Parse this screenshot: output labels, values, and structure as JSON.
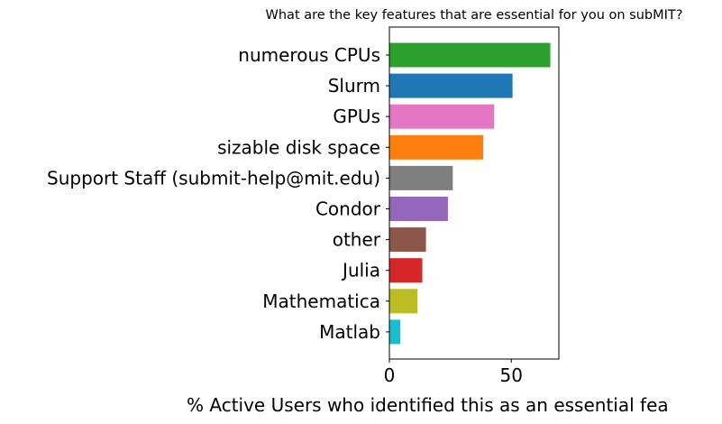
{
  "chart_data": {
    "type": "bar",
    "orientation": "horizontal",
    "title": "What are the key features that are essential for you on subMIT?",
    "xlabel": "% Active Users who identified this as an essential fea",
    "ylabel": "",
    "xlim": [
      0,
      69.5
    ],
    "xticks": [
      0,
      50
    ],
    "xtick_labels": [
      "0",
      "50"
    ],
    "grid": false,
    "bars": [
      {
        "label": "numerous CPUs",
        "value": 66,
        "color": "#2ca02c"
      },
      {
        "label": "Slurm",
        "value": 50.5,
        "color": "#1f77b4"
      },
      {
        "label": "GPUs",
        "value": 43,
        "color": "#e377c2"
      },
      {
        "label": "sizable disk space",
        "value": 38.5,
        "color": "#ff7f0e"
      },
      {
        "label": "Support Staff (submit-help@mit.edu)",
        "value": 26,
        "color": "#7f7f7f"
      },
      {
        "label": "Condor",
        "value": 24,
        "color": "#9467bd"
      },
      {
        "label": "other",
        "value": 15,
        "color": "#8c564b"
      },
      {
        "label": "Julia",
        "value": 13.5,
        "color": "#d62728"
      },
      {
        "label": "Mathematica",
        "value": 11.5,
        "color": "#bcbd22"
      },
      {
        "label": "Matlab",
        "value": 4.5,
        "color": "#17becf"
      }
    ]
  }
}
